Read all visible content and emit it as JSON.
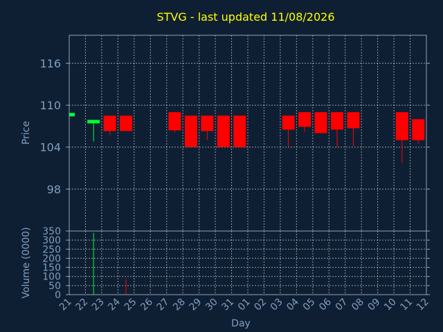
{
  "chart_data": {
    "type": "candlestick",
    "title": "STVG - last updated 11/08/2026",
    "xlabel": "Day",
    "price_panel": {
      "ylabel": "Price",
      "ylim": [
        92,
        120
      ],
      "yticks": [
        98,
        104,
        110,
        116
      ]
    },
    "volume_panel": {
      "ylabel": "Volume (0000)",
      "ylim": [
        0,
        350
      ],
      "yticks": [
        0,
        50,
        100,
        150,
        200,
        250,
        300,
        350
      ]
    },
    "grid": true,
    "day_labels": [
      "21",
      "22",
      "23",
      "24",
      "25",
      "26",
      "27",
      "28",
      "29",
      "30",
      "31",
      "01",
      "02",
      "03",
      "04",
      "05",
      "06",
      "07",
      "08",
      "09",
      "10",
      "11",
      "12"
    ],
    "candles": [
      {
        "day": "21",
        "open": 108.4,
        "high": 108.9,
        "low": 108.4,
        "close": 108.9,
        "volume": 0
      },
      {
        "day": "22",
        "open": 107.4,
        "high": 107.9,
        "low": 104.8,
        "close": 107.9,
        "volume": 340
      },
      {
        "day": "23",
        "open": 108.5,
        "high": 108.5,
        "low": 105.7,
        "close": 106.3,
        "volume": 0
      },
      {
        "day": "24",
        "open": 108.5,
        "high": 108.5,
        "low": 106.3,
        "close": 106.3,
        "volume": 85
      },
      {
        "day": "27",
        "open": 109.0,
        "high": 109.0,
        "low": 106.1,
        "close": 106.4,
        "volume": 0
      },
      {
        "day": "28",
        "open": 108.5,
        "high": 108.5,
        "low": 104.0,
        "close": 104.0,
        "volume": 0
      },
      {
        "day": "29",
        "open": 108.5,
        "high": 108.5,
        "low": 105.0,
        "close": 106.3,
        "volume": 0
      },
      {
        "day": "30",
        "open": 108.5,
        "high": 108.5,
        "low": 104.0,
        "close": 104.0,
        "volume": 0
      },
      {
        "day": "31",
        "open": 108.5,
        "high": 108.5,
        "low": 104.0,
        "close": 104.0,
        "volume": 0
      },
      {
        "day": "03",
        "open": 108.5,
        "high": 108.5,
        "low": 104.0,
        "close": 106.5,
        "volume": 0
      },
      {
        "day": "04",
        "open": 109.0,
        "high": 109.0,
        "low": 106.2,
        "close": 106.9,
        "volume": 0
      },
      {
        "day": "05",
        "open": 109.0,
        "high": 109.0,
        "low": 106.0,
        "close": 106.0,
        "volume": 0
      },
      {
        "day": "06",
        "open": 109.0,
        "high": 109.0,
        "low": 104.0,
        "close": 106.5,
        "volume": 0
      },
      {
        "day": "07",
        "open": 109.0,
        "high": 109.0,
        "low": 104.2,
        "close": 106.7,
        "volume": 0
      },
      {
        "day": "10",
        "open": 109.0,
        "high": 109.0,
        "low": 101.7,
        "close": 105.0,
        "volume": 0
      },
      {
        "day": "11",
        "open": 108.0,
        "high": 108.0,
        "low": 104.5,
        "close": 105.0,
        "volume": 0
      }
    ],
    "colors": {
      "up": "#00ff33",
      "down": "#ff0000",
      "title": "#ffff00",
      "axis_text": "#7f9fc0",
      "background": "#0f1f33"
    }
  }
}
